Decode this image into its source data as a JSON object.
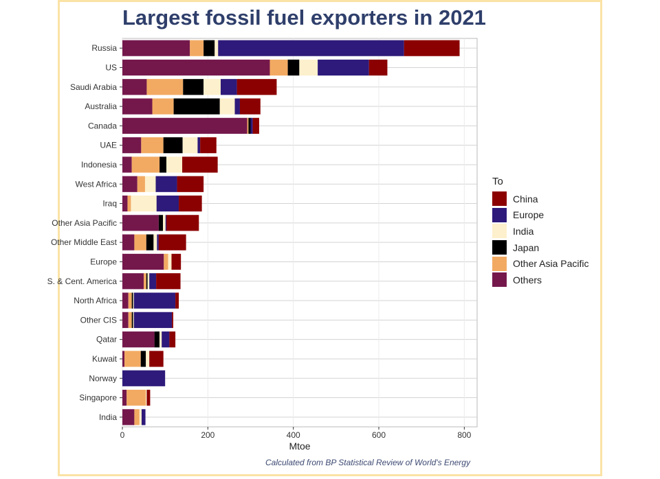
{
  "title": "Largest fossil fuel exporters in 2021",
  "caption": "Calculated from BP Statistical Review of World's Energy",
  "legend": {
    "title": "To",
    "items": [
      {
        "label": "China",
        "color": "#8b0000"
      },
      {
        "label": "Europe",
        "color": "#2e1a7a"
      },
      {
        "label": "India",
        "color": "#fdf0cc"
      },
      {
        "label": "Japan",
        "color": "#000000"
      },
      {
        "label": "Other Asia Pacific",
        "color": "#f2aa62"
      },
      {
        "label": "Others",
        "color": "#74184c"
      }
    ]
  },
  "chart_data": {
    "type": "bar",
    "orientation": "horizontal",
    "stacked": true,
    "title": "Largest fossil fuel exporters in 2021",
    "xlabel": "Mtoe",
    "ylabel": "",
    "xlim": [
      0,
      830
    ],
    "xticks": [
      0,
      200,
      400,
      600,
      800
    ],
    "grid": true,
    "legend_position": "right",
    "categories": [
      "Russia",
      "US",
      "Saudi Arabia",
      "Australia",
      "Canada",
      "UAE",
      "Indonesia",
      "West Africa",
      "Iraq",
      "Other Asia Pacific",
      "Other Middle East",
      "Europe",
      "S. & Cent. America",
      "North Africa",
      "Other CIS",
      "Qatar",
      "Kuwait",
      "Norway",
      "Singapore",
      "India"
    ],
    "series": [
      {
        "name": "Others",
        "color": "#74184c",
        "values": [
          158,
          345,
          57,
          70,
          292,
          44,
          22,
          35,
          12,
          85,
          28,
          97,
          50,
          14,
          14,
          75,
          5,
          0,
          10,
          28
        ]
      },
      {
        "name": "Other Asia Pacific",
        "color": "#f2aa62",
        "values": [
          32,
          42,
          85,
          50,
          3,
          52,
          65,
          18,
          8,
          0,
          28,
          10,
          6,
          8,
          8,
          0,
          38,
          0,
          45,
          12
        ]
      },
      {
        "name": "Japan",
        "color": "#000000",
        "values": [
          26,
          27,
          48,
          108,
          5,
          45,
          16,
          0,
          0,
          10,
          17,
          0,
          3,
          3,
          3,
          12,
          12,
          0,
          0,
          0
        ]
      },
      {
        "name": "India",
        "color": "#fdf0cc",
        "values": [
          8,
          43,
          40,
          35,
          0,
          35,
          37,
          25,
          60,
          6,
          8,
          8,
          4,
          2,
          2,
          5,
          8,
          0,
          2,
          5
        ]
      },
      {
        "name": "Europe",
        "color": "#2e1a7a",
        "values": [
          435,
          120,
          38,
          12,
          5,
          6,
          0,
          50,
          52,
          2,
          4,
          0,
          16,
          97,
          89,
          18,
          0,
          100,
          0,
          9
        ]
      },
      {
        "name": "China",
        "color": "#8b0000",
        "values": [
          130,
          43,
          93,
          48,
          15,
          38,
          83,
          62,
          54,
          76,
          64,
          22,
          57,
          8,
          3,
          14,
          33,
          0,
          8,
          0
        ]
      }
    ]
  }
}
